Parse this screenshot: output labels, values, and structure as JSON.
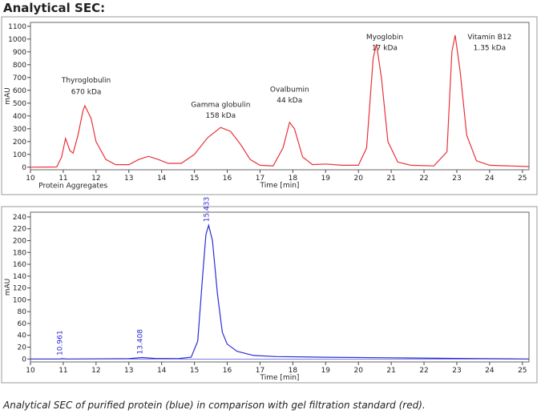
{
  "title": "Analytical SEC:",
  "caption": "Analytical SEC of purified protein (blue) in comparison with gel filtration standard (red).",
  "chart_data": [
    {
      "type": "line",
      "ylabel": "mAU",
      "xlabel": "Time [min]",
      "xlim": [
        10,
        25.2
      ],
      "ylim": [
        -20,
        1130
      ],
      "xticks": [
        10,
        11,
        12,
        13,
        14,
        15,
        16,
        17,
        18,
        19,
        20,
        21,
        22,
        23,
        24,
        25
      ],
      "yticks": [
        0,
        100,
        200,
        300,
        400,
        500,
        600,
        700,
        800,
        900,
        1000,
        1100
      ],
      "x": [
        10,
        10.8,
        10.95,
        11.07,
        11.2,
        11.3,
        11.45,
        11.6,
        11.66,
        11.85,
        12,
        12.3,
        12.6,
        13,
        13.3,
        13.6,
        13.9,
        14.2,
        14.6,
        15,
        15.4,
        15.8,
        16.1,
        16.4,
        16.7,
        17,
        17.4,
        17.7,
        17.9,
        18.05,
        18.3,
        18.6,
        19,
        19.5,
        20,
        20.25,
        20.45,
        20.55,
        20.7,
        20.9,
        21.2,
        21.6,
        22.3,
        22.7,
        22.85,
        22.95,
        23.1,
        23.3,
        23.6,
        24,
        25.2
      ],
      "series": [
        {
          "color": "#e8323a",
          "values": [
            0,
            2,
            80,
            225,
            130,
            110,
            250,
            440,
            480,
            380,
            200,
            60,
            20,
            20,
            60,
            85,
            60,
            30,
            30,
            100,
            230,
            310,
            280,
            180,
            60,
            15,
            10,
            150,
            350,
            300,
            80,
            20,
            25,
            15,
            15,
            150,
            850,
            960,
            700,
            200,
            40,
            15,
            10,
            120,
            900,
            1030,
            750,
            250,
            50,
            15,
            5
          ]
        }
      ],
      "annotations": [
        {
          "text": "Thyroglobulin",
          "x": 11.7,
          "y": 660
        },
        {
          "text": "670 kDa",
          "x": 11.7,
          "y": 570
        },
        {
          "text": "Gamma globulin",
          "x": 15.8,
          "y": 470
        },
        {
          "text": "158 kDa",
          "x": 15.8,
          "y": 385
        },
        {
          "text": "Ovalbumin",
          "x": 17.9,
          "y": 590
        },
        {
          "text": "44 kDa",
          "x": 17.9,
          "y": 505
        },
        {
          "text": "Myoglobin",
          "x": 20.8,
          "y": 1000
        },
        {
          "text": "17 kDa",
          "x": 20.8,
          "y": 915
        },
        {
          "text": "Vitamin B12",
          "x": 24,
          "y": 1000
        },
        {
          "text": "1.35 kDa",
          "x": 24,
          "y": 915
        },
        {
          "text": "Protein Aggregates",
          "x": 11.3,
          "y": -160
        }
      ]
    },
    {
      "type": "line",
      "ylabel": "mAU",
      "xlabel": "Time [min]",
      "xlim": [
        10,
        25.2
      ],
      "ylim": [
        -5,
        248
      ],
      "xticks": [
        10,
        11,
        12,
        13,
        14,
        15,
        16,
        17,
        18,
        19,
        20,
        21,
        22,
        23,
        24,
        25
      ],
      "yticks": [
        0,
        20,
        40,
        60,
        80,
        100,
        120,
        140,
        160,
        180,
        200,
        220,
        240
      ],
      "x": [
        10,
        10.9,
        10.961,
        11.1,
        13,
        13.408,
        13.8,
        14.5,
        14.9,
        15.1,
        15.25,
        15.35,
        15.433,
        15.55,
        15.7,
        15.85,
        16,
        16.3,
        16.8,
        17.5,
        19,
        21,
        23,
        25.2
      ],
      "series": [
        {
          "color": "#2c2cd6",
          "values": [
            0,
            0,
            0.5,
            0,
            0.5,
            2.5,
            1,
            0.5,
            3,
            30,
            140,
            210,
            226,
            200,
            110,
            45,
            25,
            13,
            6,
            4,
            3,
            2,
            1,
            0
          ]
        }
      ],
      "peak_labels": [
        10.961,
        13.408,
        15.433
      ]
    }
  ]
}
